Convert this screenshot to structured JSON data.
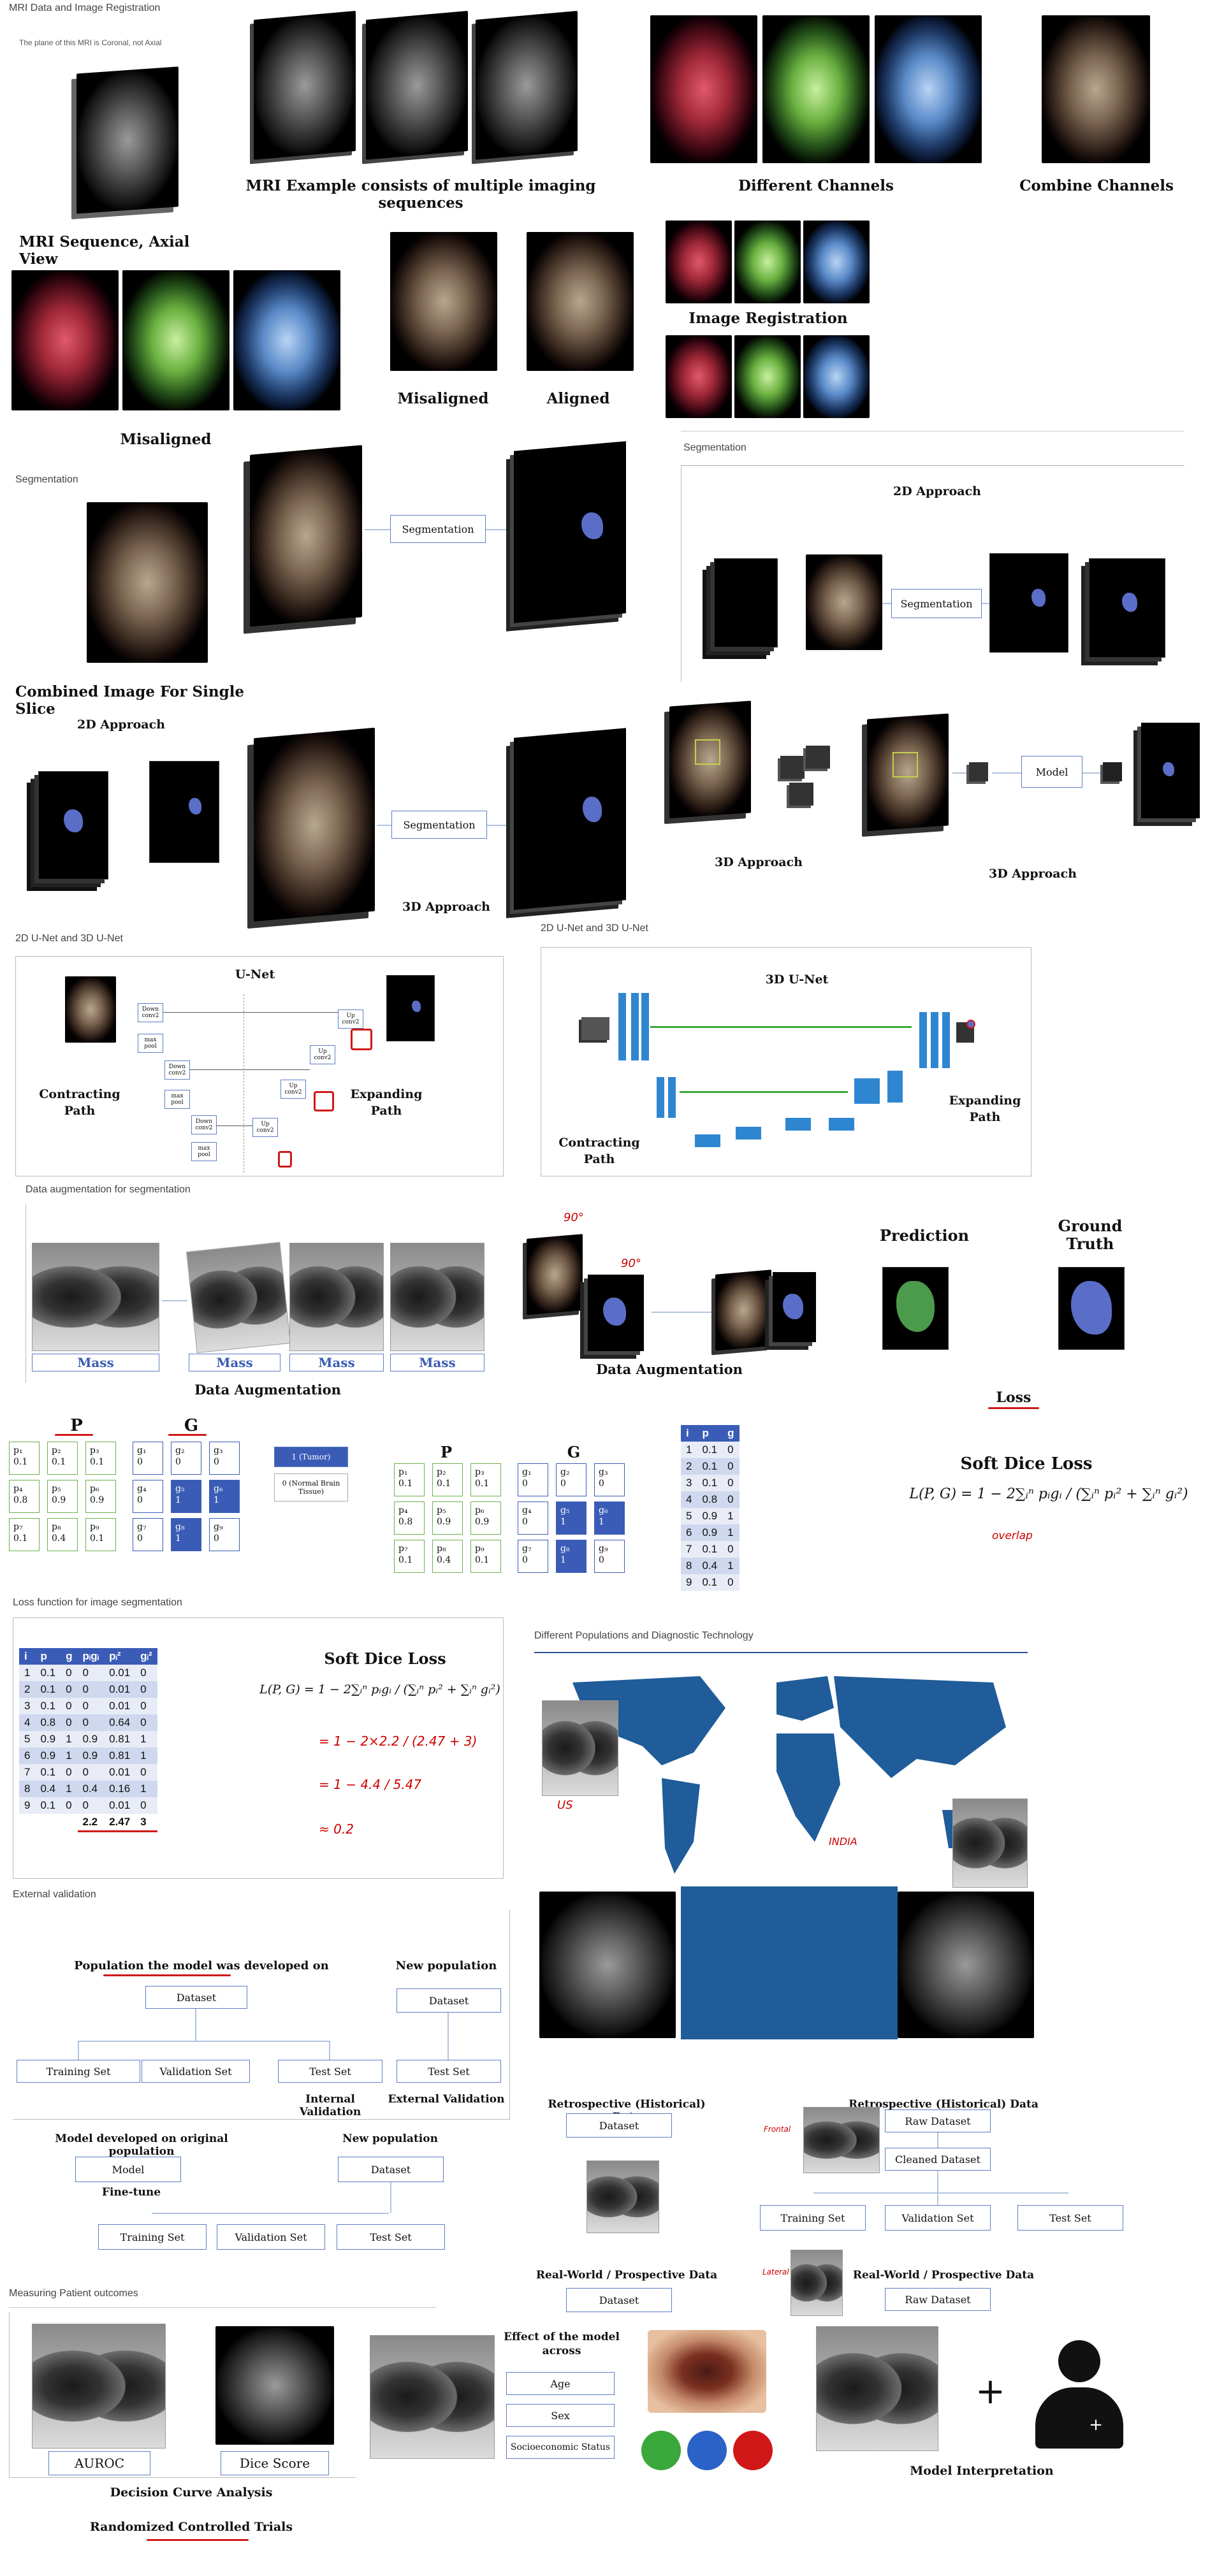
{
  "mri": {
    "section_title": "MRI Data and Image Registration",
    "plane_note": "The plane of this MRI is Coronal, not Axial",
    "example_caption": "MRI Example consists of multiple imaging sequences",
    "channels_caption": "Different Channels",
    "combine_caption": "Combine Channels",
    "axial_caption": "MRI Sequence, Axial View",
    "misaligned_left": "Misaligned",
    "misaligned_mid": "Misaligned",
    "aligned": "Aligned",
    "registration": "Image Registration"
  },
  "seg": {
    "section_left": "Segmentation",
    "section_right": "Segmentation",
    "box_label": "Segmentation",
    "box_label_2d": "Segmentation",
    "box_label_3d": "Segmentation",
    "combined_caption": "Combined Image For Single Slice",
    "approach_2d_right": "2D Approach",
    "approach_2d_left": "2D Approach",
    "approach_3d_center": "3D Approach",
    "approach_3d_a": "3D Approach",
    "approach_3d_b": "3D Approach",
    "model_label": "Model"
  },
  "unet": {
    "section_left": "2D U-Net and 3D U-Net",
    "section_right": "2D U-Net and 3D U-Net",
    "title_2d": "U-Net",
    "title_3d": "3D U-Net",
    "contracting": "Contracting Path",
    "expanding": "Expanding Path",
    "contracting_3d": "Contracting Path",
    "expanding_3d": "Expanding Path",
    "blocks": [
      "Down conv2",
      "max pool",
      "Down conv2",
      "max pool",
      "Down conv2",
      "max pool",
      "Up conv2",
      "Up conv2",
      "Up conv2",
      "Up conv2"
    ]
  },
  "aug": {
    "section_title": "Data augmentation for segmentation",
    "labels": [
      "Mass",
      "Mass",
      "Mass",
      "Mass"
    ],
    "caption_left": "Data Augmentation",
    "caption_mid": "Data Augmentation",
    "angle_1": "90°",
    "angle_2": "90°",
    "prediction": "Prediction",
    "ground_truth": "Ground Truth",
    "loss": "Loss"
  },
  "grid": {
    "p_title": "P",
    "g_title": "G",
    "p_cells": [
      [
        "p₁",
        "0.1"
      ],
      [
        "p₂",
        "0.1"
      ],
      [
        "p₃",
        "0.1"
      ],
      [
        "p₄",
        "0.8"
      ],
      [
        "p₅",
        "0.9"
      ],
      [
        "p₆",
        "0.9"
      ],
      [
        "p₇",
        "0.1"
      ],
      [
        "p₈",
        "0.4"
      ],
      [
        "p₉",
        "0.1"
      ]
    ],
    "g_cells": [
      [
        "g₁",
        "0"
      ],
      [
        "g₂",
        "0"
      ],
      [
        "g₃",
        "0"
      ],
      [
        "g₄",
        "0"
      ],
      [
        "g₅",
        "1"
      ],
      [
        "g₆",
        "1"
      ],
      [
        "g₇",
        "0"
      ],
      [
        "g₈",
        "1"
      ],
      [
        "g₉",
        "0"
      ]
    ],
    "legend_tumor": "1 (Tumor)",
    "legend_normal": "0 (Normal Brain Tissue)"
  },
  "table_small": {
    "headers": [
      "i",
      "p",
      "g"
    ],
    "rows": [
      [
        "1",
        "0.1",
        "0"
      ],
      [
        "2",
        "0.1",
        "0"
      ],
      [
        "3",
        "0.1",
        "0"
      ],
      [
        "4",
        "0.8",
        "0"
      ],
      [
        "5",
        "0.9",
        "1"
      ],
      [
        "6",
        "0.9",
        "1"
      ],
      [
        "7",
        "0.1",
        "0"
      ],
      [
        "8",
        "0.4",
        "1"
      ],
      [
        "9",
        "0.1",
        "0"
      ]
    ]
  },
  "dice": {
    "title": "Soft Dice Loss",
    "formula": "L(P, G) = 1 − 2∑ᵢⁿ pᵢgᵢ / (∑ᵢⁿ pᵢ² + ∑ᵢⁿ gᵢ²)",
    "overlap_note": "overlap",
    "section_title": "Loss function for image segmentation",
    "title_2": "Soft Dice Loss",
    "formula_2": "L(P, G) = 1 − 2∑ᵢⁿ pᵢgᵢ / (∑ᵢⁿ pᵢ² + ∑ᵢⁿ gᵢ²)",
    "work": [
      "= 1 − 2×2.2 / (2.47 + 3)",
      "= 1 − 4.4 / 5.47",
      "≈ 0.2"
    ]
  },
  "table_big": {
    "headers": [
      "i",
      "p",
      "g",
      "pᵢgᵢ",
      "pᵢ²",
      "gᵢ²"
    ],
    "rows": [
      [
        "1",
        "0.1",
        "0",
        "0",
        "0.01",
        "0"
      ],
      [
        "2",
        "0.1",
        "0",
        "0",
        "0.01",
        "0"
      ],
      [
        "3",
        "0.1",
        "0",
        "0",
        "0.01",
        "0"
      ],
      [
        "4",
        "0.8",
        "0",
        "0",
        "0.64",
        "0"
      ],
      [
        "5",
        "0.9",
        "1",
        "0.9",
        "0.81",
        "1"
      ],
      [
        "6",
        "0.9",
        "1",
        "0.9",
        "0.81",
        "1"
      ],
      [
        "7",
        "0.1",
        "0",
        "0",
        "0.01",
        "0"
      ],
      [
        "8",
        "0.4",
        "1",
        "0.4",
        "0.16",
        "1"
      ],
      [
        "9",
        "0.1",
        "0",
        "0",
        "0.01",
        "0"
      ]
    ],
    "totals": [
      "",
      "",
      "",
      "2.2",
      "2.47",
      "3"
    ]
  },
  "pop": {
    "section_title": "Different Populations and Diagnostic Technology",
    "us": "US",
    "india": "INDIA"
  },
  "ext": {
    "section_title": "External validation",
    "developed_on": "Population the model was developed on",
    "new_population": "New population",
    "dataset": "Dataset",
    "dataset_new": "Dataset",
    "training": "Training Set",
    "validation": "Validation Set",
    "test": "Test Set",
    "test_new": "Test Set",
    "internal": "Internal Validation",
    "external": "External Validation",
    "model_dev": "Model developed on original population",
    "new_pop_2": "New population",
    "model": "Model",
    "finetune": "Fine-tune",
    "dataset_2": "Dataset",
    "training_2": "Training Set",
    "validation_2": "Validation Set",
    "test_2": "Test Set"
  },
  "retro": {
    "retro_left": "Retrospective (Historical) Data",
    "dataset_left": "Dataset",
    "realworld_left": "Real-World / Prospective Data",
    "dataset_left_2": "Dataset",
    "retro_right": "Retrospective (Historical) Data",
    "raw_dataset": "Raw Dataset",
    "cleaned_dataset": "Cleaned Dataset",
    "frontal": "Frontal",
    "lateral": "Lateral",
    "training": "Training Set",
    "validation": "Validation Set",
    "test": "Test Set",
    "realworld_right": "Real-World / Prospective Data",
    "raw_dataset_2": "Raw Dataset"
  },
  "outcomes": {
    "section_title": "Measuring Patient outcomes",
    "auroc": "AUROC",
    "dice_score": "Dice Score",
    "decision_curve": "Decision Curve Analysis",
    "rct": "Randomized Controlled Trials",
    "effect_title": "Effect of the model across",
    "age": "Age",
    "sex": "Sex",
    "ses": "Socioeconomic Status",
    "plus": "+",
    "interpretation": "Model Interpretation"
  },
  "colors": {
    "accent": "#3a5cb6",
    "annotation": "#d01818",
    "map": "#1f5c99"
  }
}
